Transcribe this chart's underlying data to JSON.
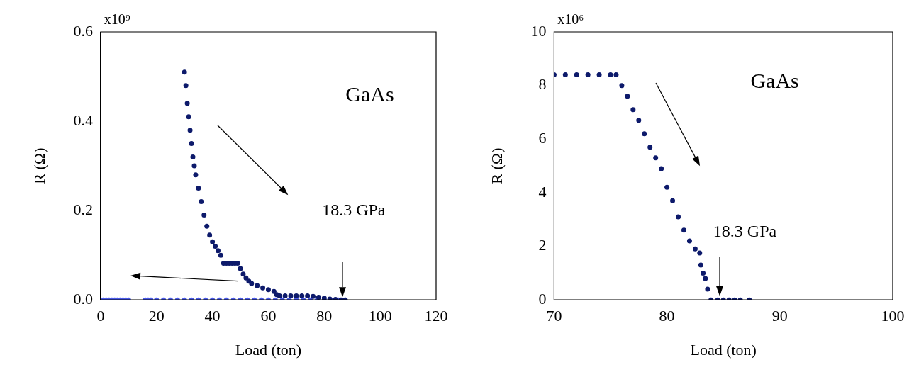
{
  "chart_data": [
    {
      "type": "scatter",
      "xlabel": "Load (ton)",
      "ylabel": "R (Ω)",
      "xlim": [
        0,
        120
      ],
      "xticks": [
        0,
        20,
        40,
        60,
        80,
        100,
        120
      ],
      "ylim": [
        0,
        0.6
      ],
      "yticks": [
        {
          "value": 0,
          "label": "0.0"
        },
        0.2,
        0.4,
        0.6
      ],
      "marker": "circle",
      "annotations": [
        "GaAs",
        "18.3 GPa",
        "x10⁹"
      ],
      "series": [
        {
          "color": "#0d1a6b",
          "x": [
            30,
            30.5,
            31,
            31.5,
            32,
            32.5,
            33,
            33.5,
            34,
            35,
            36,
            37,
            38,
            39,
            40,
            41,
            42,
            43,
            44,
            45,
            46,
            47,
            48,
            49,
            50,
            51,
            52,
            53,
            54,
            56,
            58,
            60,
            62,
            63,
            64,
            66,
            68,
            70,
            72,
            74,
            76,
            78,
            80,
            82,
            84,
            86,
            87.5
          ],
          "values": [
            0.51,
            0.48,
            0.44,
            0.41,
            0.38,
            0.35,
            0.32,
            0.3,
            0.28,
            0.25,
            0.22,
            0.19,
            0.165,
            0.145,
            0.13,
            0.12,
            0.11,
            0.1,
            0.082,
            0.082,
            0.082,
            0.082,
            0.082,
            0.082,
            0.07,
            0.058,
            0.049,
            0.042,
            0.037,
            0.032,
            0.027,
            0.023,
            0.019,
            0.012,
            0.009,
            0.009,
            0.009,
            0.009,
            0.009,
            0.009,
            0.008,
            0.006,
            0.004,
            0.002,
            0.001,
            0,
            0
          ]
        },
        {
          "color": "#4a5be8",
          "x": [
            0,
            1,
            2,
            3,
            4,
            5,
            6,
            7,
            8,
            9,
            10,
            16,
            17,
            18,
            20,
            22.5,
            25,
            27.5,
            30,
            32.5,
            35,
            37.5,
            40,
            42.5,
            45,
            47.5,
            50,
            52.5,
            55,
            57.5,
            60,
            62.5,
            65,
            67.5,
            70,
            72.5,
            75,
            77.5,
            80,
            82.5,
            85,
            87.5
          ],
          "values": [
            0,
            0,
            0,
            0,
            0,
            0,
            0,
            0,
            0,
            0,
            0,
            0,
            0,
            0,
            0,
            0,
            0,
            0,
            0,
            0,
            0,
            0,
            0,
            0,
            0,
            0,
            0,
            0,
            0,
            0,
            0,
            0,
            0,
            0,
            0,
            0,
            0,
            0,
            0,
            0,
            0,
            0
          ]
        }
      ]
    },
    {
      "type": "scatter",
      "xlabel": "Load (ton)",
      "ylabel": "R (Ω)",
      "xlim": [
        70,
        100
      ],
      "xticks": [
        70,
        80,
        90,
        100
      ],
      "ylim": [
        0,
        10
      ],
      "yticks": [
        0,
        2,
        4,
        6,
        8,
        10
      ],
      "marker": "circle",
      "annotations": [
        "GaAs",
        "18.3 GPa",
        "x10⁶"
      ],
      "series": [
        {
          "color": "#0d1a6b",
          "x": [
            70,
            71,
            72,
            73,
            74,
            75,
            75.5,
            76,
            76.5,
            77,
            77.5,
            78,
            78.5,
            79,
            79.5,
            80,
            80.5,
            81,
            81.5,
            82,
            82.5,
            82.9,
            83,
            83.2,
            83.4,
            83.6,
            83.9,
            84.5,
            85,
            85.5,
            86,
            86.5,
            87.3
          ],
          "values": [
            8.4,
            8.4,
            8.4,
            8.4,
            8.4,
            8.4,
            8.4,
            8,
            7.6,
            7.1,
            6.7,
            6.2,
            5.7,
            5.3,
            4.9,
            4.2,
            3.7,
            3.1,
            2.6,
            2.2,
            1.9,
            1.75,
            1.3,
            1,
            0.8,
            0.4,
            0,
            0,
            0,
            0,
            0,
            0,
            0
          ]
        }
      ]
    }
  ]
}
